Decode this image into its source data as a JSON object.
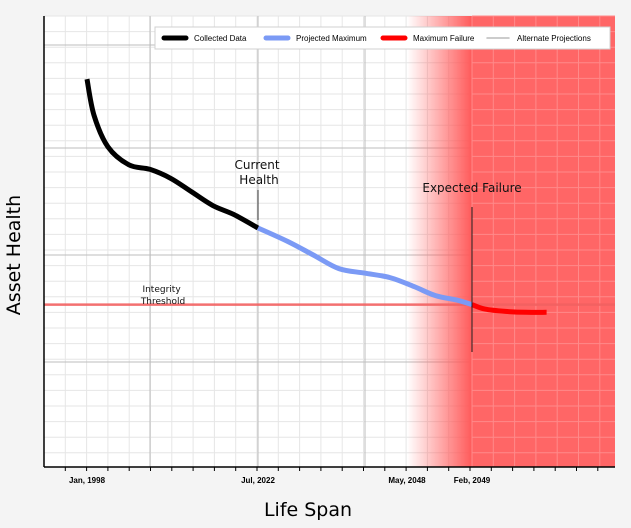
{
  "chart_data": {
    "type": "line",
    "xlabel": "Life Span",
    "ylabel": "Asset Health",
    "tick_labels": [
      "Jan, 1998",
      "Jul, 2022",
      "May, 2048",
      "Feb, 2049"
    ],
    "legend": {
      "placement": "top-right",
      "entries": [
        {
          "label": "Collected Data",
          "color": "#000000"
        },
        {
          "label": "Projected Maximum",
          "color": "#7b9af5"
        },
        {
          "label": "Maximum Failure",
          "color": "#ff0000"
        },
        {
          "label": "Alternate Projections",
          "color": "#bbbbbb"
        }
      ]
    },
    "annotations": {
      "current": "Current\nHealth",
      "failure": "Expected Failure",
      "threshold": "Integrity\nThreshold"
    },
    "series": [
      {
        "name": "Collected Data",
        "color": "#000000",
        "points": [
          [
            1998.0,
            86
          ],
          [
            1999.0,
            78
          ],
          [
            2001.0,
            71
          ],
          [
            2004.0,
            67
          ],
          [
            2007.0,
            66
          ],
          [
            2010.0,
            64
          ],
          [
            2013.0,
            61
          ],
          [
            2016.0,
            58
          ],
          [
            2019.0,
            56
          ],
          [
            2022.5,
            53
          ]
        ]
      },
      {
        "name": "Projected Maximum",
        "color": "#7b9af5",
        "points": [
          [
            2022.5,
            53
          ],
          [
            2026.0,
            50
          ],
          [
            2029.0,
            47
          ],
          [
            2032.0,
            44
          ],
          [
            2035.0,
            43
          ],
          [
            2038.0,
            42
          ],
          [
            2041.0,
            40
          ],
          [
            2044.0,
            38
          ],
          [
            2047.0,
            37
          ],
          [
            2049.1,
            36
          ]
        ]
      },
      {
        "name": "Maximum Failure",
        "color": "#ff0000",
        "points": [
          [
            2049.1,
            36
          ],
          [
            2051.0,
            35
          ],
          [
            2054.0,
            34.5
          ],
          [
            2057.0,
            34.3
          ],
          [
            2060.0,
            34.3
          ]
        ]
      }
    ],
    "threshold_y": 36,
    "current_x": 2022.5,
    "failure_x": 2049.1,
    "risk_start_x": 2040.0,
    "grid": true
  }
}
